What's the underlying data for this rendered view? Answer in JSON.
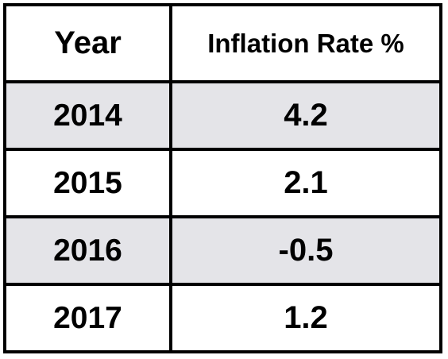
{
  "chart_data": {
    "type": "table",
    "columns": [
      "Year",
      "Inflation Rate %"
    ],
    "rows": [
      [
        "2014",
        "4.2"
      ],
      [
        "2015",
        "2.1"
      ],
      [
        "2016",
        "-0.5"
      ],
      [
        "2017",
        "1.2"
      ]
    ]
  },
  "colors": {
    "stripe": "#e4e4e8",
    "background": "#ffffff",
    "border": "#000000",
    "text": "#000000"
  }
}
